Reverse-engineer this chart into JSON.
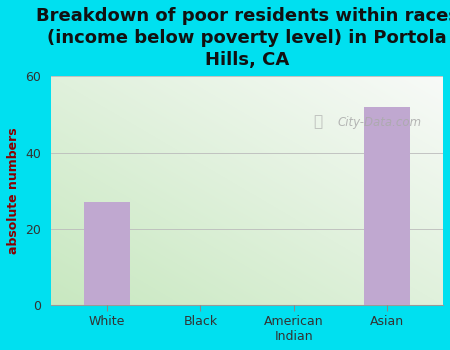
{
  "title": "Breakdown of poor residents within races\n(income below poverty level) in Portola\nHills, CA",
  "categories": [
    "White",
    "Black",
    "American\nIndian",
    "Asian"
  ],
  "values": [
    27,
    0,
    0,
    52
  ],
  "bar_color": "#c0a8d0",
  "ylabel": "absolute numbers",
  "ylim": [
    0,
    60
  ],
  "yticks": [
    0,
    20,
    40,
    60
  ],
  "background_outer": "#00e0f0",
  "title_fontsize": 13,
  "title_color": "#111111",
  "watermark_text": "City-Data.com",
  "bar_width": 0.5,
  "grid_color": "#bbbbbb",
  "ylabel_color": "#8b0000"
}
